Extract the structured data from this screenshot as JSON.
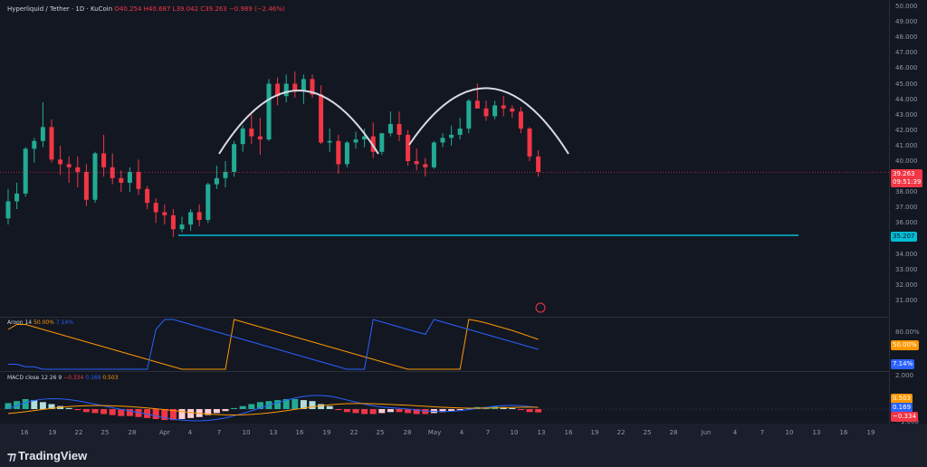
{
  "header": {
    "symbol": "Hyperliquid / Tether · 1D · KuCoin",
    "open": "O40.254",
    "high": "H40.687",
    "low": "L39.042",
    "close": "C39.263",
    "change": "−0.989 (−2.46%)"
  },
  "price_axis": {
    "ticks": [
      "50.000",
      "49.000",
      "48.000",
      "47.000",
      "46.000",
      "45.000",
      "44.000",
      "43.000",
      "42.000",
      "41.000",
      "40.000",
      "38.000",
      "37.000",
      "36.000",
      "34.000",
      "33.000",
      "32.000",
      "31.000"
    ],
    "last_price": "39.263",
    "countdown": "09:51:39",
    "support_price": "35.207"
  },
  "aroon": {
    "label": "Aroon 14",
    "up_value": "50.00%",
    "down_value": "7.14%",
    "ticks": [
      "80.00%"
    ]
  },
  "macd": {
    "label": "MACD close 12 26 9",
    "hist_value": "−0.334",
    "macd_value": "0.169",
    "signal_value": "0.503",
    "ticks": [
      "2.000",
      "−1.000"
    ]
  },
  "time_axis": {
    "ticks": [
      "16",
      "19",
      "22",
      "25",
      "28",
      "Apr",
      "4",
      "7",
      "10",
      "13",
      "16",
      "19",
      "22",
      "25",
      "28",
      "May",
      "4",
      "7",
      "10",
      "13",
      "16",
      "19",
      "22",
      "25",
      "28",
      "Jun",
      "4",
      "7",
      "10",
      "13",
      "16",
      "19"
    ]
  },
  "footer": {
    "brand": "TradingView"
  },
  "colors": {
    "up": "#22ab94",
    "down": "#f23645",
    "support_line": "#00bcd4",
    "arc": "#d9d9e6",
    "aroon_up": "#ff9800",
    "aroon_down": "#2962ff"
  },
  "chart_data": {
    "type": "candlestick",
    "title": "Hyperliquid / Tether · 1D · KuCoin",
    "ohlc": [
      [
        36.3,
        38.2,
        35.9,
        37.4
      ],
      [
        37.4,
        38.6,
        36.9,
        37.9
      ],
      [
        37.9,
        40.9,
        37.7,
        40.8
      ],
      [
        40.8,
        41.5,
        39.9,
        41.3
      ],
      [
        41.3,
        43.8,
        40.9,
        42.2
      ],
      [
        42.2,
        42.7,
        39.9,
        40.1
      ],
      [
        40.1,
        41.0,
        39.1,
        39.8
      ],
      [
        39.8,
        40.3,
        38.6,
        39.6
      ],
      [
        39.6,
        40.3,
        38.3,
        39.3
      ],
      [
        39.3,
        39.8,
        37.1,
        37.5
      ],
      [
        37.5,
        40.6,
        37.3,
        40.5
      ],
      [
        40.5,
        41.7,
        39.0,
        39.6
      ],
      [
        39.6,
        40.5,
        38.5,
        38.9
      ],
      [
        38.9,
        39.4,
        38.0,
        38.6
      ],
      [
        38.6,
        39.6,
        38.0,
        39.3
      ],
      [
        39.3,
        40.1,
        37.8,
        38.2
      ],
      [
        38.2,
        38.4,
        36.9,
        37.3
      ],
      [
        37.3,
        37.6,
        36.0,
        36.7
      ],
      [
        36.7,
        37.2,
        35.9,
        36.5
      ],
      [
        36.5,
        36.9,
        35.1,
        35.6
      ],
      [
        35.6,
        36.4,
        35.4,
        35.9
      ],
      [
        35.9,
        36.9,
        35.5,
        36.7
      ],
      [
        36.7,
        37.2,
        35.8,
        36.2
      ],
      [
        36.2,
        38.6,
        36.0,
        38.5
      ],
      [
        38.5,
        39.7,
        38.2,
        38.9
      ],
      [
        38.9,
        40.0,
        38.3,
        39.3
      ],
      [
        39.3,
        41.3,
        39.0,
        41.1
      ],
      [
        41.1,
        42.3,
        40.6,
        42.1
      ],
      [
        42.1,
        43.0,
        41.1,
        41.6
      ],
      [
        41.6,
        42.8,
        40.4,
        41.4
      ],
      [
        41.4,
        45.3,
        41.3,
        45.0
      ],
      [
        45.0,
        45.4,
        43.6,
        44.2
      ],
      [
        44.2,
        45.6,
        43.8,
        45.0
      ],
      [
        45.0,
        45.8,
        44.1,
        44.5
      ],
      [
        44.5,
        45.6,
        43.7,
        45.3
      ],
      [
        45.3,
        45.6,
        44.1,
        44.3
      ],
      [
        44.3,
        44.9,
        41.1,
        41.2
      ],
      [
        41.2,
        42.1,
        40.6,
        41.3
      ],
      [
        41.3,
        41.7,
        39.2,
        39.8
      ],
      [
        39.8,
        41.3,
        39.6,
        41.2
      ],
      [
        41.2,
        41.9,
        40.8,
        41.4
      ],
      [
        41.4,
        42.1,
        40.9,
        41.6
      ],
      [
        41.6,
        42.5,
        40.2,
        40.6
      ],
      [
        40.6,
        41.8,
        40.4,
        41.8
      ],
      [
        41.8,
        43.2,
        41.6,
        42.4
      ],
      [
        42.4,
        43.2,
        41.3,
        41.7
      ],
      [
        41.7,
        42.0,
        39.7,
        40.0
      ],
      [
        40.0,
        40.8,
        39.4,
        39.8
      ],
      [
        39.8,
        40.2,
        39.0,
        39.6
      ],
      [
        39.6,
        41.3,
        39.5,
        41.2
      ],
      [
        41.2,
        41.8,
        40.9,
        41.5
      ],
      [
        41.5,
        42.3,
        41.0,
        41.7
      ],
      [
        41.7,
        42.8,
        41.4,
        42.1
      ],
      [
        42.1,
        44.0,
        41.8,
        43.9
      ],
      [
        43.9,
        45.0,
        43.4,
        43.4
      ],
      [
        43.4,
        43.9,
        42.6,
        42.9
      ],
      [
        42.9,
        43.9,
        42.7,
        43.6
      ],
      [
        43.6,
        44.2,
        42.9,
        43.4
      ],
      [
        43.4,
        43.6,
        42.8,
        43.2
      ],
      [
        43.2,
        43.5,
        41.8,
        42.1
      ],
      [
        42.1,
        42.2,
        40.0,
        40.3
      ],
      [
        40.3,
        40.7,
        39.0,
        39.3
      ]
    ],
    "support_level": 35.207,
    "ylim": [
      30.5,
      50.5
    ],
    "grid": false,
    "legend": "none"
  }
}
